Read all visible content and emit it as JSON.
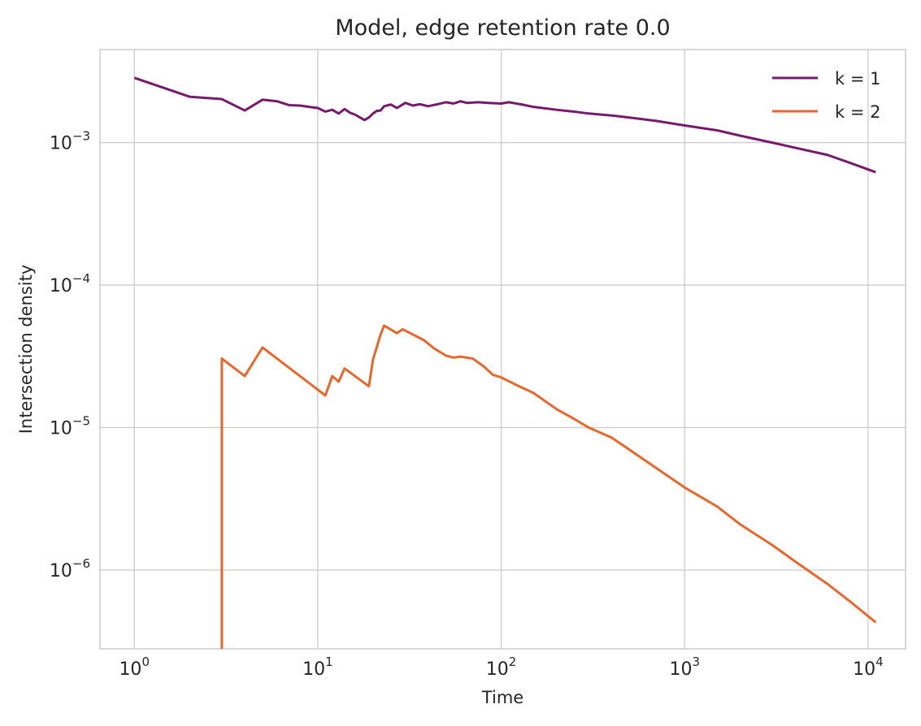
{
  "chart_data": {
    "type": "line",
    "title": "Model, edge retention rate 0.0",
    "xlabel": "Time",
    "ylabel": "Intersection density",
    "xscale": "log",
    "yscale": "log",
    "xlim": [
      0.65,
      16000
    ],
    "ylim": [
      2.8e-07,
      0.0045
    ],
    "grid": true,
    "legend_position": "top-right",
    "x_ticks": [
      {
        "base": "10",
        "exp": "0",
        "value": 1
      },
      {
        "base": "10",
        "exp": "1",
        "value": 10
      },
      {
        "base": "10",
        "exp": "2",
        "value": 100
      },
      {
        "base": "10",
        "exp": "3",
        "value": 1000
      },
      {
        "base": "10",
        "exp": "4",
        "value": 10000
      }
    ],
    "y_ticks": [
      {
        "base": "10",
        "exp": "−3",
        "value": 0.001
      },
      {
        "base": "10",
        "exp": "−4",
        "value": 0.0001
      },
      {
        "base": "10",
        "exp": "−5",
        "value": 1e-05
      },
      {
        "base": "10",
        "exp": "−6",
        "value": 1e-06
      }
    ],
    "series": [
      {
        "name": "k = 1",
        "color": "#761b6b",
        "points": [
          [
            1,
            0.00285
          ],
          [
            2,
            0.0021
          ],
          [
            3,
            0.00202
          ],
          [
            4,
            0.00168
          ],
          [
            5,
            0.002
          ],
          [
            6,
            0.00195
          ],
          [
            7,
            0.00183
          ],
          [
            8,
            0.00182
          ],
          [
            9,
            0.00178
          ],
          [
            10,
            0.00175
          ],
          [
            11,
            0.00165
          ],
          [
            12,
            0.0017
          ],
          [
            13,
            0.0016
          ],
          [
            14,
            0.00172
          ],
          [
            15,
            0.00162
          ],
          [
            16,
            0.00157
          ],
          [
            17,
            0.0015
          ],
          [
            18,
            0.00144
          ],
          [
            19,
            0.0015
          ],
          [
            20,
            0.0016
          ],
          [
            21,
            0.00167
          ],
          [
            22,
            0.00168
          ],
          [
            23,
            0.0018
          ],
          [
            25,
            0.00185
          ],
          [
            27,
            0.00175
          ],
          [
            30,
            0.0019
          ],
          [
            33,
            0.00182
          ],
          [
            36,
            0.00186
          ],
          [
            40,
            0.0018
          ],
          [
            45,
            0.00186
          ],
          [
            50,
            0.00192
          ],
          [
            55,
            0.00188
          ],
          [
            60,
            0.00195
          ],
          [
            65,
            0.0019
          ],
          [
            75,
            0.00192
          ],
          [
            85,
            0.0019
          ],
          [
            100,
            0.00188
          ],
          [
            110,
            0.00192
          ],
          [
            130,
            0.00185
          ],
          [
            150,
            0.00178
          ],
          [
            200,
            0.0017
          ],
          [
            250,
            0.00165
          ],
          [
            300,
            0.0016
          ],
          [
            400,
            0.00155
          ],
          [
            500,
            0.0015
          ],
          [
            700,
            0.00142
          ],
          [
            1000,
            0.00132
          ],
          [
            1500,
            0.00122
          ],
          [
            2000,
            0.00112
          ],
          [
            3000,
            0.001
          ],
          [
            4000,
            0.00092
          ],
          [
            6000,
            0.00082
          ],
          [
            8000,
            0.00072
          ],
          [
            11000,
            0.00062
          ]
        ]
      },
      {
        "name": "k = 2",
        "color": "#e8672b",
        "points": [
          [
            3,
            2e-07
          ],
          [
            3,
            3.05e-05
          ],
          [
            4,
            2.3e-05
          ],
          [
            5,
            3.65e-05
          ],
          [
            11,
            1.68e-05
          ],
          [
            12,
            2.3e-05
          ],
          [
            13,
            2.1e-05
          ],
          [
            14,
            2.6e-05
          ],
          [
            19,
            1.95e-05
          ],
          [
            20,
            3e-05
          ],
          [
            22,
            4.5e-05
          ],
          [
            23,
            5.2e-05
          ],
          [
            27,
            4.6e-05
          ],
          [
            29,
            4.9e-05
          ],
          [
            33,
            4.5e-05
          ],
          [
            38,
            4.1e-05
          ],
          [
            43,
            3.6e-05
          ],
          [
            50,
            3.2e-05
          ],
          [
            55,
            3.1e-05
          ],
          [
            60,
            3.15e-05
          ],
          [
            70,
            3.05e-05
          ],
          [
            80,
            2.7e-05
          ],
          [
            90,
            2.35e-05
          ],
          [
            100,
            2.25e-05
          ],
          [
            120,
            2e-05
          ],
          [
            150,
            1.75e-05
          ],
          [
            200,
            1.35e-05
          ],
          [
            250,
            1.15e-05
          ],
          [
            300,
            1e-05
          ],
          [
            400,
            8.5e-06
          ],
          [
            500,
            7e-06
          ],
          [
            700,
            5.2e-06
          ],
          [
            1000,
            3.8e-06
          ],
          [
            1500,
            2.8e-06
          ],
          [
            2000,
            2.1e-06
          ],
          [
            3000,
            1.5e-06
          ],
          [
            4000,
            1.15e-06
          ],
          [
            6000,
            8e-07
          ],
          [
            8000,
            6e-07
          ],
          [
            11000,
            4.3e-07
          ]
        ]
      }
    ]
  }
}
